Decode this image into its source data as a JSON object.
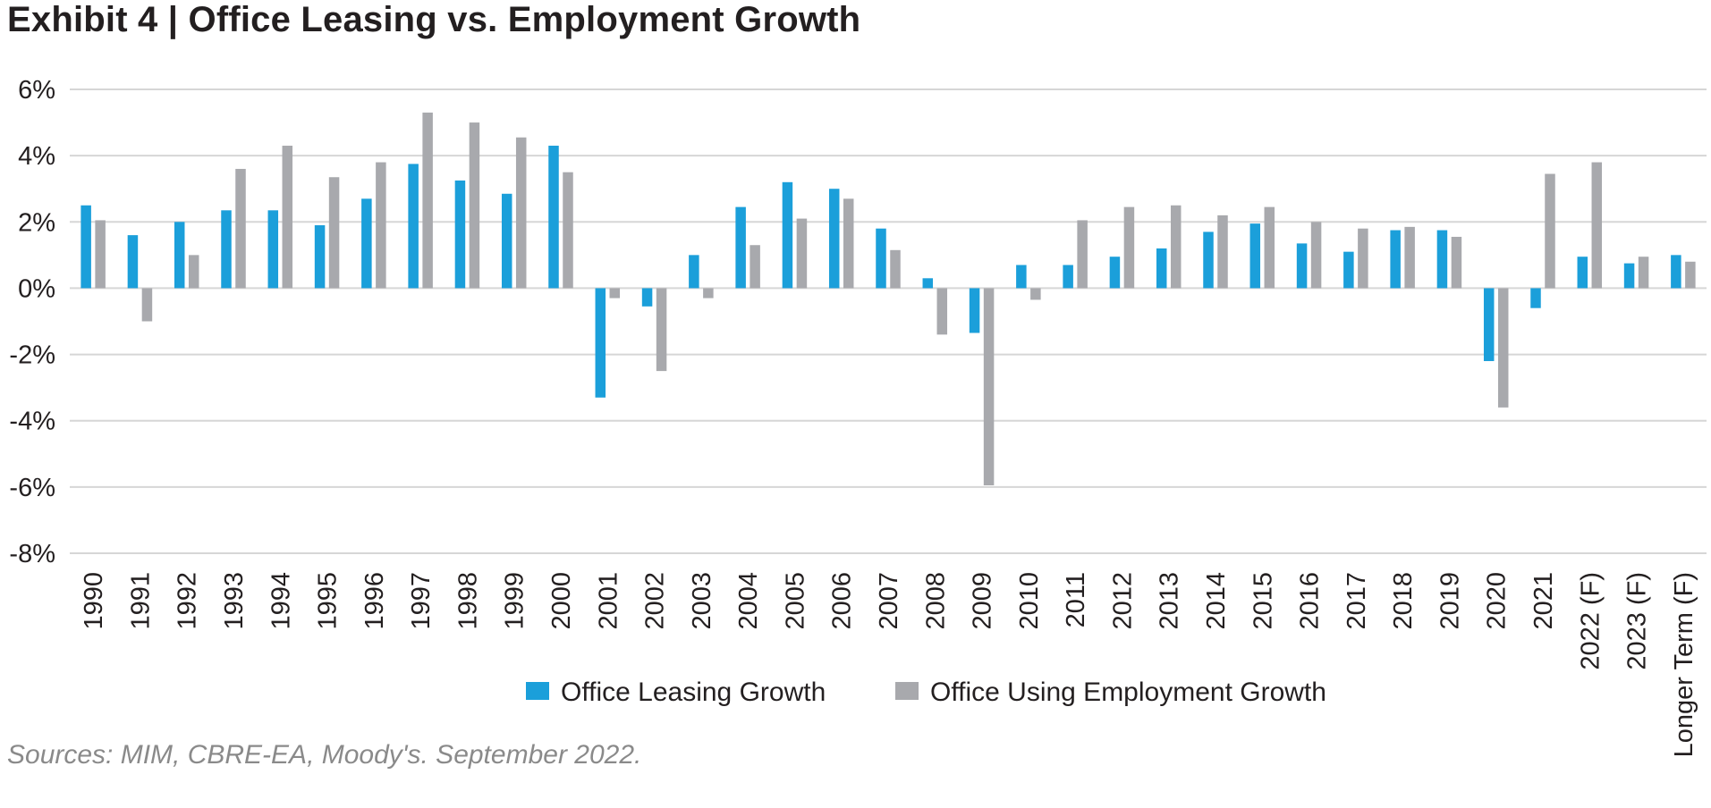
{
  "chart_data": {
    "type": "bar",
    "title": "Exhibit 4  |  Office Leasing vs. Employment Growth",
    "xlabel": "",
    "ylabel": "",
    "ylim": [
      -8,
      6
    ],
    "y_ticks": [
      6,
      4,
      2,
      0,
      -2,
      -4,
      -6,
      -8
    ],
    "y_tick_labels": [
      "6%",
      "4%",
      "2%",
      "0%",
      "-2%",
      "-4%",
      "-6%",
      "-8%"
    ],
    "grid": true,
    "legend_position": "bottom",
    "categories": [
      "1990",
      "1991",
      "1992",
      "1993",
      "1994",
      "1995",
      "1996",
      "1997",
      "1998",
      "1999",
      "2000",
      "2001",
      "2002",
      "2003",
      "2004",
      "2005",
      "2006",
      "2007",
      "2008",
      "2009",
      "2010",
      "2011",
      "2012",
      "2013",
      "2014",
      "2015",
      "2016",
      "2017",
      "2018",
      "2019",
      "2020",
      "2021",
      "2022 (F)",
      "2023 (F)",
      "Longer Term (F)"
    ],
    "series": [
      {
        "name": "Office Leasing Growth",
        "color": "#1b9fda",
        "values": [
          2.5,
          1.6,
          2.0,
          2.35,
          2.35,
          1.9,
          2.7,
          3.75,
          3.25,
          2.85,
          4.3,
          -3.3,
          -0.55,
          1.0,
          2.45,
          3.2,
          3.0,
          1.8,
          0.3,
          -1.35,
          0.7,
          0.7,
          0.95,
          1.2,
          1.7,
          1.95,
          1.35,
          1.1,
          1.75,
          1.75,
          -2.2,
          -0.6,
          0.95,
          0.75,
          1.0
        ]
      },
      {
        "name": "Office Using Employment Growth",
        "color": "#a8a9ad",
        "values": [
          2.05,
          -1.0,
          1.0,
          3.6,
          4.3,
          3.35,
          3.8,
          5.3,
          5.0,
          4.55,
          3.5,
          -0.3,
          -2.5,
          -0.3,
          1.3,
          2.1,
          2.7,
          1.15,
          -1.4,
          -5.95,
          -0.35,
          2.05,
          2.45,
          2.5,
          2.2,
          2.45,
          2.0,
          1.8,
          1.85,
          1.55,
          -3.6,
          3.45,
          3.8,
          0.95,
          0.8
        ]
      }
    ]
  },
  "source_note": "Sources: MIM, CBRE-EA, Moody's. September 2022."
}
